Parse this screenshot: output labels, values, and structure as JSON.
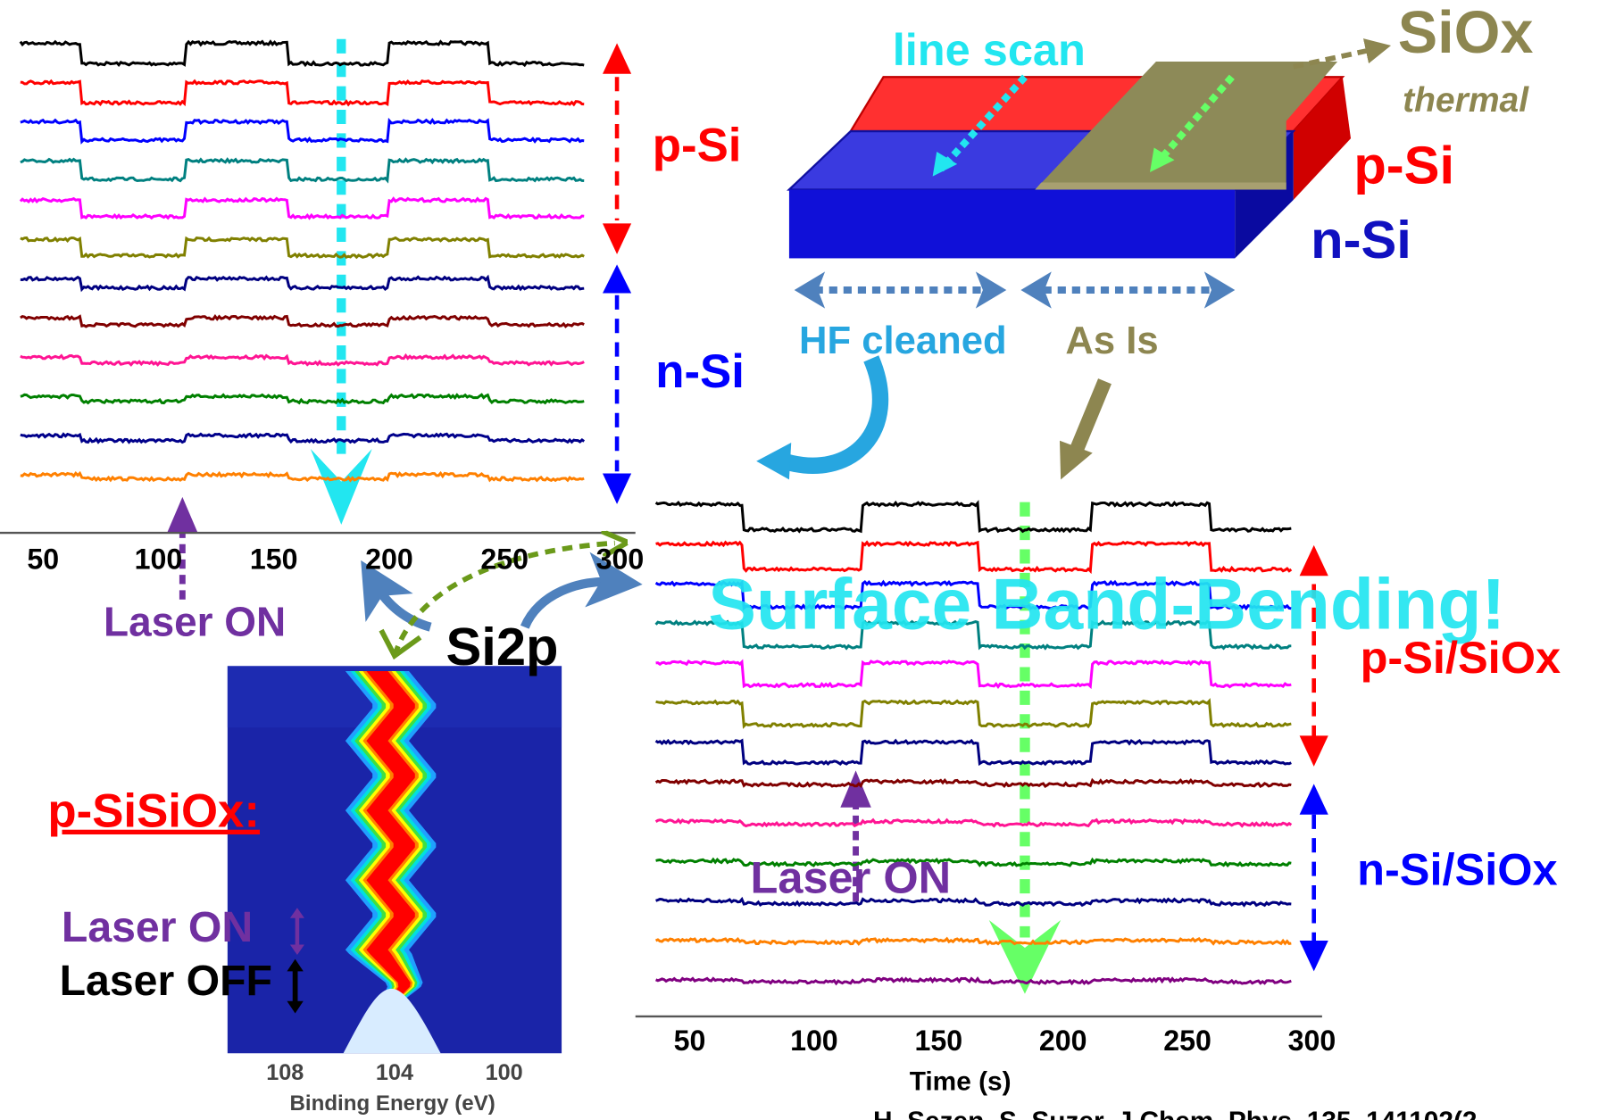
{
  "top_left_plot": {
    "label_p": "p-Si",
    "label_n": "n-Si",
    "laser_label": "Laser ON",
    "xlim": [
      31.35,
      306.7
    ],
    "xticks": [
      50,
      100,
      150,
      200,
      250,
      300
    ],
    "trace_colors": [
      "#000000",
      "#ff0000",
      "#0000ff",
      "#008080",
      "#ff00ff",
      "#808000",
      "#000080",
      "#800000",
      "#ff1493",
      "#008000",
      "#00008b",
      "#ff8000"
    ]
  },
  "schematic": {
    "line_scan": "line scan",
    "oxide": "SiOx",
    "oxide_note": "thermal",
    "p_label": "p-Si",
    "n_label": "n-Si",
    "left_region": "HF cleaned",
    "right_region": "As Is"
  },
  "spectrum": {
    "title": "Si2p"
  },
  "heatmap": {
    "label": "p-SiSiOx:",
    "laser_on": "Laser ON",
    "laser_off": "Laser OFF",
    "xlabel": "Binding Energy (eV)",
    "xlim": [
      110.1,
      97.9
    ],
    "xticks": [
      108,
      104,
      100
    ]
  },
  "bottom_right_plot": {
    "banner": "Surface Band-Bending!",
    "label_p": "p-Si/SiOx",
    "label_n": "n-Si/SiOx",
    "laser_label": "Laser ON",
    "xlabel": "Time (s)",
    "xlim": [
      28.2,
      304.1
    ],
    "xticks": [
      50,
      100,
      150,
      200,
      250,
      300
    ],
    "trace_colors": [
      "#000000",
      "#ff0000",
      "#0000ff",
      "#008080",
      "#ff00ff",
      "#808000",
      "#000080",
      "#800000",
      "#ff1493",
      "#008000",
      "#000080",
      "#ff8000",
      "#800080"
    ]
  },
  "citation": "H. Sezen, S. Suzer, J.Chem. Phys. 135, 141102(2"
}
